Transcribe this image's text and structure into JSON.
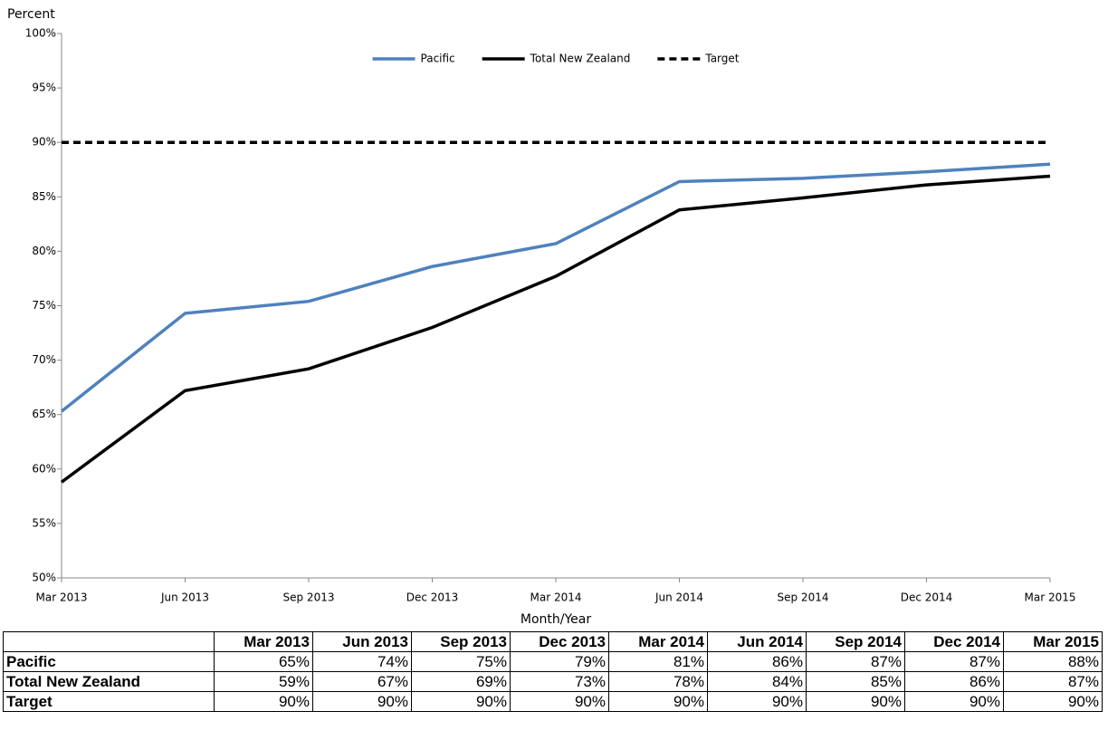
{
  "chart_data": {
    "type": "line",
    "y_axis_label": "Percent",
    "x_axis_label": "Month/Year",
    "categories": [
      "Mar 2013",
      "Jun 2013",
      "Sep 2013",
      "Dec 2013",
      "Mar 2014",
      "Jun 2014",
      "Sep 2014",
      "Dec 2014",
      "Mar 2015"
    ],
    "series": [
      {
        "name": "Pacific",
        "color": "#4f81bd",
        "line_style": "solid",
        "values": [
          65.3,
          74.3,
          75.4,
          78.6,
          80.7,
          86.4,
          86.7,
          87.3,
          88.0
        ],
        "value_labels": [
          "65%",
          "74%",
          "75%",
          "79%",
          "81%",
          "86%",
          "87%",
          "87%",
          "88%"
        ]
      },
      {
        "name": "Total New Zealand",
        "color": "#000000",
        "line_style": "solid",
        "values": [
          58.8,
          67.2,
          69.2,
          73.0,
          77.7,
          83.8,
          84.9,
          86.1,
          86.9
        ],
        "value_labels": [
          "59%",
          "67%",
          "69%",
          "73%",
          "78%",
          "84%",
          "85%",
          "86%",
          "87%"
        ]
      },
      {
        "name": "Target",
        "color": "#000000",
        "line_style": "dashed",
        "values": [
          90,
          90,
          90,
          90,
          90,
          90,
          90,
          90,
          90
        ],
        "value_labels": [
          "90%",
          "90%",
          "90%",
          "90%",
          "90%",
          "90%",
          "90%",
          "90%",
          "90%"
        ]
      }
    ],
    "ylim": [
      50,
      100
    ],
    "yticks": [
      {
        "value": 50,
        "label": "50%"
      },
      {
        "value": 55,
        "label": "55%"
      },
      {
        "value": 60,
        "label": "60%"
      },
      {
        "value": 65,
        "label": "65%"
      },
      {
        "value": 70,
        "label": "70%"
      },
      {
        "value": 75,
        "label": "75%"
      },
      {
        "value": 80,
        "label": "80%"
      },
      {
        "value": 85,
        "label": "85%"
      },
      {
        "value": 90,
        "label": "90%"
      },
      {
        "value": 95,
        "label": "95%"
      },
      {
        "value": 100,
        "label": "100%"
      }
    ],
    "grid": false,
    "legend_position": "top"
  }
}
